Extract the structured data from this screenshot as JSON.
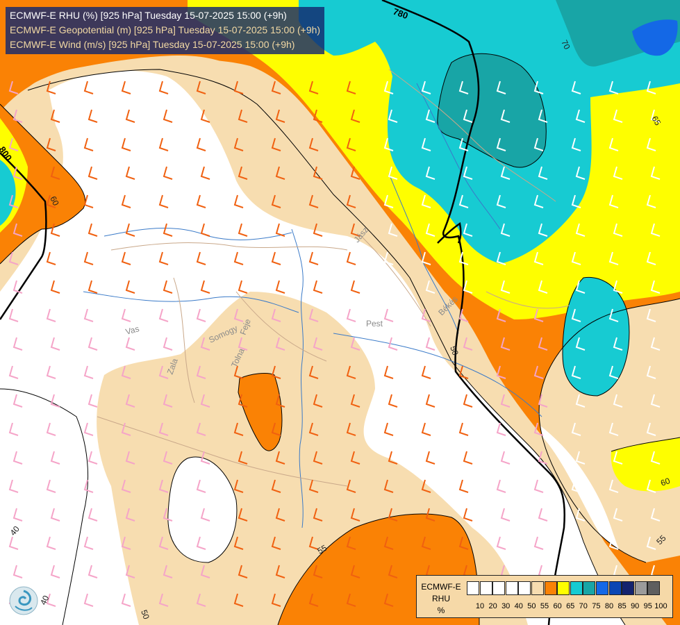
{
  "title": {
    "line1": "ECMWF-E RHU (%) [925 hPa] Tuesday 15-07-2025 15:00 (+9h)",
    "line2": "ECMWF-E Geopotential (m) [925 hPa] Tuesday 15-07-2025 15:00 (+9h)",
    "line3": "ECMWF-E Wind (m/s) [925 hPa] Tuesday 15-07-2025 15:00 (+9h)"
  },
  "contour_labels": {
    "geo_780": "780",
    "geo_800": "800",
    "rhu_70": "70",
    "rhu_65": "65",
    "rhu_60_left": "60",
    "rhu_50_center": "50",
    "rhu_60_right": "60",
    "rhu_55_right": "55",
    "rhu_55_bottom": "55",
    "rhu_40_left": "40",
    "rhu_40_bottom": "40",
    "rhu_50_bottom": "50"
  },
  "place_labels": {
    "pest": "Pest",
    "vas": "Vas",
    "somogy": "Somogy",
    "tolna": "Tolna",
    "feje": "Feje",
    "zala": "Zala",
    "bekes": "Békés",
    "zaba": "Jász"
  },
  "legend": {
    "title_line1": "ECMWF-E",
    "title_line2": "RHU",
    "title_line3": "%",
    "swatches": [
      "#ffffff",
      "#ffffff",
      "#ffffff",
      "#ffffff",
      "#ffffff",
      "#f7ddb0",
      "#fa8205",
      "#fefe00",
      "#17cbd2",
      "#18a5a6",
      "#1468e6",
      "#0a46b4",
      "#14236e",
      "#9b9b9b",
      "#5f5f5f"
    ],
    "ticks": [
      "10",
      "20",
      "30",
      "40",
      "50",
      "55",
      "60",
      "65",
      "70",
      "75",
      "80",
      "85",
      "90",
      "95",
      "100"
    ]
  },
  "colors": {
    "rhu_55": "#f7ddb0",
    "rhu_60": "#fa8205",
    "rhu_65": "#fefe00",
    "rhu_70": "#17cbd2",
    "rhu_75": "#18a5a6",
    "rhu_80": "#1468e6",
    "wind_barb_orange": "#f06010",
    "wind_barb_pink": "#f5a4c8",
    "wind_barb_white": "#ffffff",
    "rivers": "#3a7ac8",
    "borders": "#c9a88a"
  }
}
